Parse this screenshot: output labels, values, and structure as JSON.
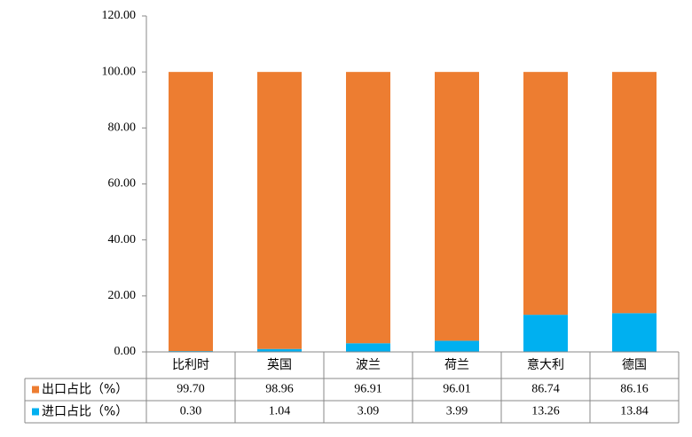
{
  "chart_data": {
    "type": "stacked_bar",
    "categories": [
      "比利时",
      "英国",
      "波兰",
      "荷兰",
      "意大利",
      "德国"
    ],
    "series": [
      {
        "name": "出口占比（%）",
        "color": "#ED7D31",
        "values": [
          99.7,
          98.96,
          96.91,
          96.01,
          86.74,
          86.16
        ],
        "value_labels": [
          "99.70",
          "98.96",
          "96.91",
          "96.01",
          "86.74",
          "86.16"
        ]
      },
      {
        "name": "进口占比（%）",
        "color": "#00B0F0",
        "values": [
          0.3,
          1.04,
          3.09,
          3.99,
          13.26,
          13.84
        ],
        "value_labels": [
          "0.30",
          "1.04",
          "3.09",
          "3.99",
          "13.26",
          "13.84"
        ]
      }
    ],
    "ylim": [
      0,
      120
    ],
    "yticks": [
      {
        "value": 0,
        "label": "0.00"
      },
      {
        "value": 20,
        "label": "20.00"
      },
      {
        "value": 40,
        "label": "40.00"
      },
      {
        "value": 60,
        "label": "60.00"
      },
      {
        "value": 80,
        "label": "80.00"
      },
      {
        "value": 100,
        "label": "100.00"
      },
      {
        "value": 120,
        "label": "120.00"
      }
    ]
  }
}
